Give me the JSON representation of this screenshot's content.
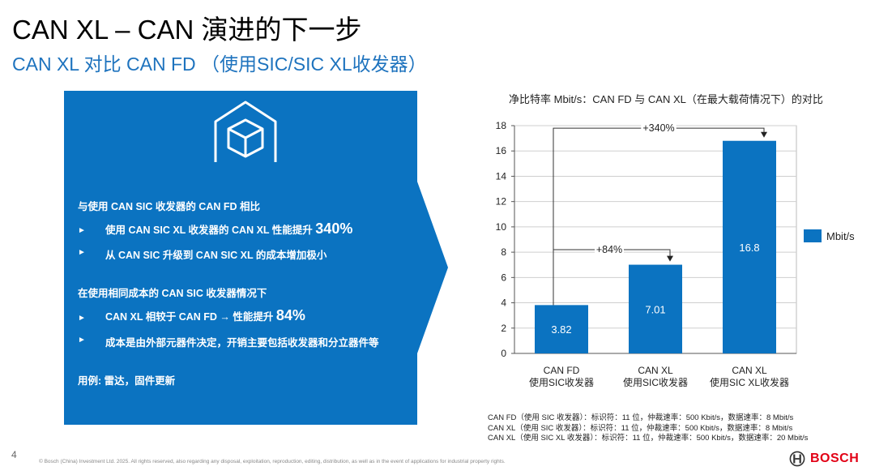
{
  "header": {
    "title": "CAN XL – CAN 演进的下一步",
    "subtitle": "CAN XL 对比 CAN FD （使用SIC/SIC XL收发器）"
  },
  "panel": {
    "icon": "package-house-icon",
    "section1_heading": "与使用 CAN SIC 收发器的 CAN FD 相比",
    "section1_item1_text": "使用 CAN SIC XL 收发器的 CAN XL 性能提升",
    "section1_item1_highlight": "340%",
    "section1_item2_text": "从 CAN SIC 升级到 CAN SIC XL 的成本增加极小",
    "section2_heading": "在使用相同成本的 CAN SIC 收发器情况下",
    "section2_item1_text": "CAN XL 相较于 CAN FD → 性能提升",
    "section2_item1_highlight": "84%",
    "section2_item2_text": "成本是由外部元器件决定，开销主要包括收发器和分立器件等",
    "use_case": "用例: 雷达，固件更新",
    "bullet_glyph": "►"
  },
  "chart_data": {
    "type": "bar",
    "title": "净比特率 Mbit/s：CAN FD 与 CAN XL（在最大载荷情况下）的对比",
    "categories": [
      [
        "CAN FD",
        "使用SIC收发器"
      ],
      [
        "CAN XL",
        "使用SIC收发器"
      ],
      [
        "CAN XL",
        "使用SIC XL收发器"
      ]
    ],
    "series": [
      {
        "name": "Mbit/s",
        "values": [
          3.82,
          7.01,
          16.8
        ]
      }
    ],
    "data_labels": [
      "3.82",
      "7.01",
      "16.8"
    ],
    "ylim": [
      0,
      18
    ],
    "yticks": [
      0,
      2,
      4,
      6,
      8,
      10,
      12,
      14,
      16,
      18
    ],
    "grid": true,
    "legend": "right",
    "annotations": [
      {
        "text": "+340%",
        "from": 0,
        "to": 2
      },
      {
        "text": "+84%",
        "from": 0,
        "to": 1
      }
    ],
    "bar_color": "#0b73c1"
  },
  "notes": [
    "CAN FD（使用 SIC 收发器）：标识符：11 位，仲裁速率：500 Kbit/s，数据速率：8 Mbit/s",
    "CAN XL（使用 SIC 收发器）：标识符：11 位，仲裁速率：500 Kbit/s，数据速率：8 Mbit/s",
    "CAN XL（使用 SIC XL 收发器）：标识符：11 位，仲裁速率：500 Kbit/s，数据速率：20 Mbit/s"
  ],
  "footer": {
    "page_number": "4",
    "copyright": "© Bosch (China) Investment Ltd. 2025. All rights reserved, also regarding any disposal, exploitation, reproduction, editing, distribution, as well as in the event of applications for industrial property rights.",
    "brand": "BOSCH",
    "brand_color": "#e20015"
  }
}
